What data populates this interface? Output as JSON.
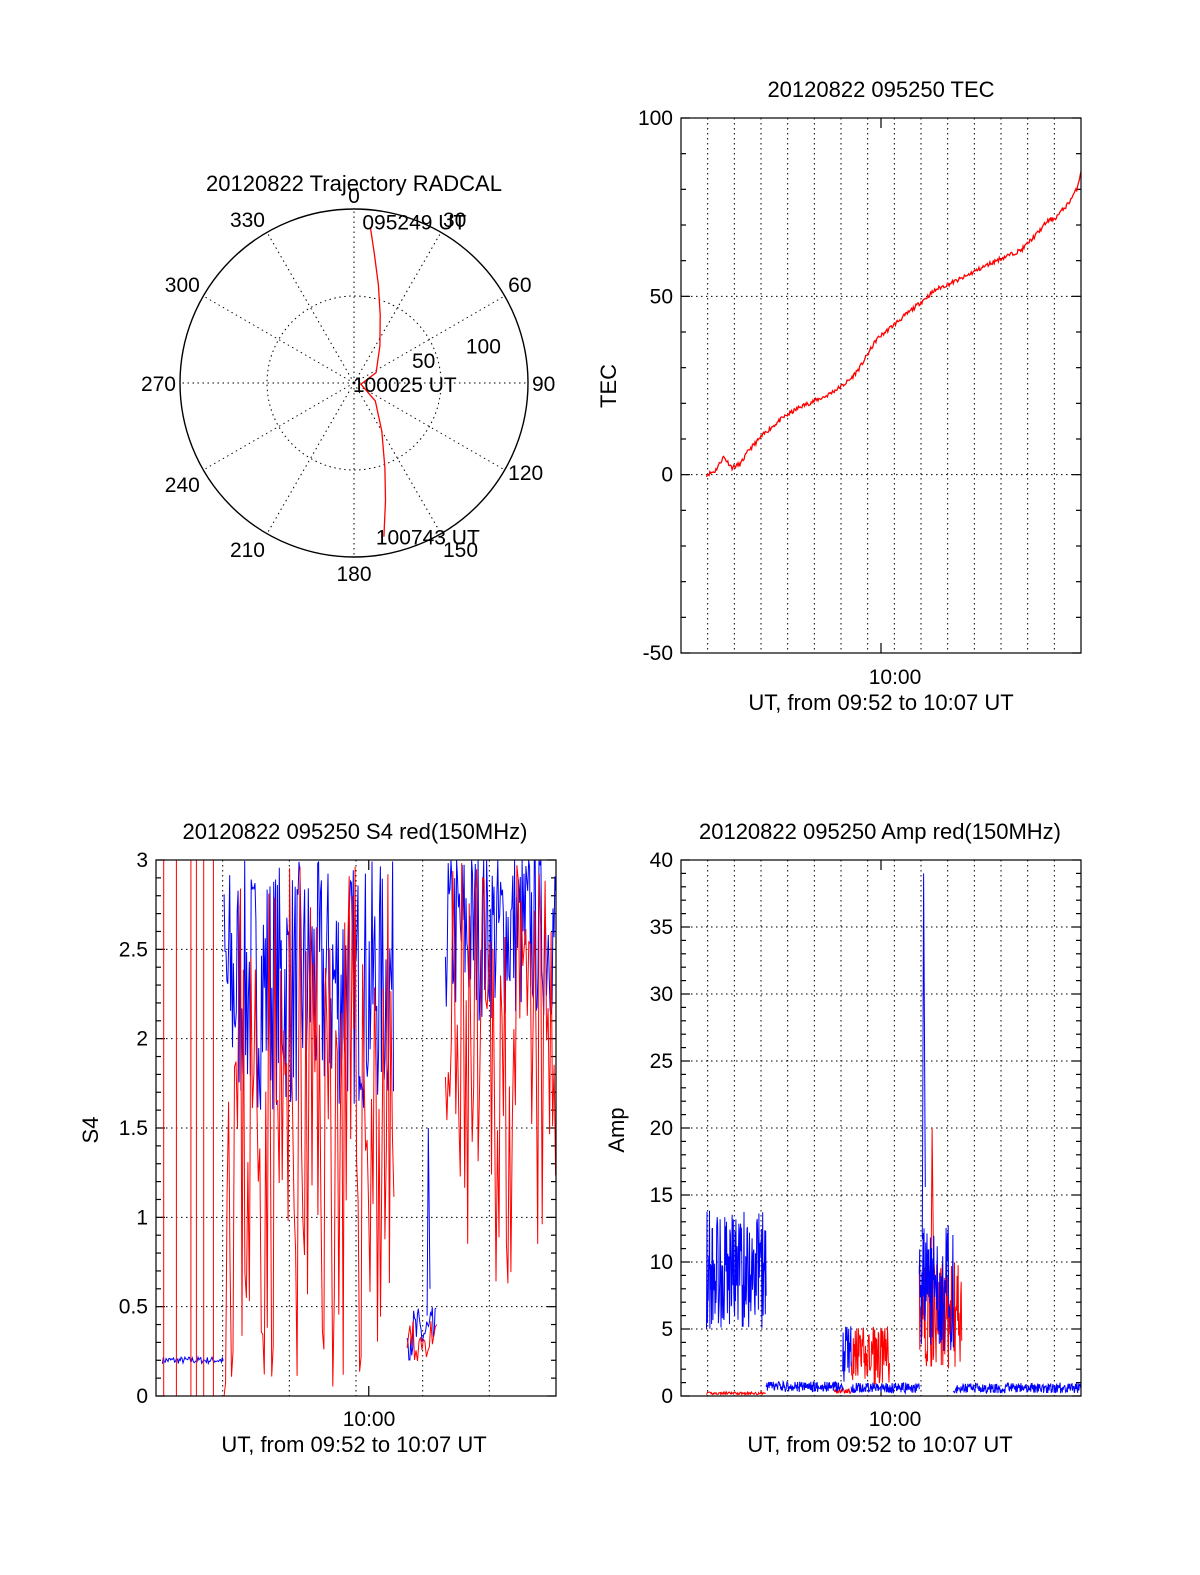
{
  "chart_data": [
    {
      "type": "polar",
      "title": "20120822 Trajectory RADCAL",
      "angle_labels": [
        "0",
        "30",
        "60",
        "90",
        "120",
        "150",
        "180",
        "210",
        "240",
        "270",
        "300",
        "330"
      ],
      "radial_labels": [
        "50",
        "100"
      ],
      "series": [
        {
          "color": "#ff0000",
          "points": [
            [
              6,
              90
            ],
            [
              9,
              75
            ],
            [
              14,
              58
            ],
            [
              21,
              42
            ],
            [
              35,
              26
            ],
            [
              65,
              14
            ],
            [
              100,
              4
            ],
            [
              130,
              16
            ],
            [
              150,
              32
            ],
            [
              160,
              52
            ],
            [
              165,
              70
            ],
            [
              169,
              90
            ]
          ]
        }
      ],
      "annotations": [
        {
          "text": "095249 UT",
          "angle": 6,
          "r": 90
        },
        {
          "text": "100025 UT",
          "angle": 100,
          "r": 4
        },
        {
          "text": "100743 UT",
          "angle": 169,
          "r": 90
        }
      ]
    },
    {
      "type": "line",
      "title": "20120822 095250 TEC",
      "xlabel": "UT, from 09:52 to 10:07 UT",
      "ylabel": "TEC",
      "xlim": [
        0,
        940
      ],
      "ylim": [
        -50,
        100
      ],
      "yticks": [
        -50,
        0,
        50,
        100
      ],
      "xticks": [
        {
          "value": 470,
          "label": "10:00"
        }
      ],
      "series": [
        {
          "color": "#ff0000",
          "x": [
            60,
            80,
            100,
            120,
            140,
            160,
            200,
            240,
            280,
            340,
            380,
            400,
            420,
            430,
            440,
            460,
            500,
            540,
            600,
            640,
            660,
            690,
            740,
            760,
            800,
            840,
            860,
            880,
            910,
            930,
            940
          ],
          "y": [
            0,
            1,
            5,
            2,
            3,
            7,
            12,
            16,
            19,
            22,
            25,
            27,
            30,
            32,
            34,
            38,
            42,
            46,
            52,
            54,
            55,
            57,
            60,
            61,
            63,
            68,
            71,
            72,
            76,
            80,
            85
          ]
        }
      ]
    },
    {
      "type": "line",
      "title": "20120822 095250 S4 red(150MHz)",
      "xlabel": "UT, from 09:52 to 10:07 UT",
      "ylabel": "S4",
      "xlim": [
        0,
        940
      ],
      "ylim": [
        0,
        3
      ],
      "yticks": [
        0,
        0.5,
        1,
        1.5,
        2,
        2.5,
        3
      ],
      "xticks": [
        {
          "value": 500,
          "label": "10:00"
        }
      ],
      "series": [
        {
          "name": "",
          "color": "#0000ff",
          "segments": [
            {
              "x_start": 15,
              "x_end": 160,
              "level": 0.2,
              "noise": 0.02
            },
            {
              "x_start": 160,
              "x_end": 560,
              "level": 2.3,
              "noise": 0.7
            },
            {
              "x_start": 590,
              "x_end": 660,
              "level": 0.35,
              "noise": 0.15
            },
            {
              "x_start": 680,
              "x_end": 940,
              "level": 2.6,
              "noise": 0.5
            }
          ],
          "peaks": [
            {
              "x": 640,
              "y": 1.5
            }
          ]
        },
        {
          "name": "",
          "color": "#ff0000",
          "segments": [
            {
              "x_start": 160,
              "x_end": 560,
              "level": 1.5,
              "noise": 1.5
            },
            {
              "x_start": 590,
              "x_end": 660,
              "level": 0.3,
              "noise": 0.12
            },
            {
              "x_start": 680,
              "x_end": 940,
              "level": 1.8,
              "noise": 1.2
            }
          ],
          "spikes_x": [
            18,
            48,
            82,
            95,
            112,
            135
          ]
        }
      ]
    },
    {
      "type": "line",
      "title": "20120822 095250 Amp red(150MHz)",
      "xlabel": "UT, from 09:52 to 10:07 UT",
      "ylabel": "Amp",
      "xlim": [
        0,
        940
      ],
      "ylim": [
        0,
        40
      ],
      "yticks": [
        0,
        5,
        10,
        15,
        20,
        25,
        30,
        35,
        40
      ],
      "xticks": [
        {
          "value": 470,
          "label": "10:00"
        }
      ],
      "series": [
        {
          "name": "",
          "color": "#0000ff",
          "segments": [
            {
              "x_start": 60,
              "x_end": 200,
              "level": 9.5,
              "noise": 4.5
            },
            {
              "x_start": 200,
              "x_end": 380,
              "level": 0.7,
              "noise": 0.4
            },
            {
              "x_start": 380,
              "x_end": 400,
              "level": 3.5,
              "noise": 2.5
            },
            {
              "x_start": 400,
              "x_end": 560,
              "level": 0.6,
              "noise": 0.4
            },
            {
              "x_start": 560,
              "x_end": 640,
              "level": 8,
              "noise": 5
            },
            {
              "x_start": 640,
              "x_end": 940,
              "level": 0.6,
              "noise": 0.4
            }
          ],
          "peaks": [
            {
              "x": 570,
              "y": 39
            }
          ]
        },
        {
          "name": "",
          "color": "#ff0000",
          "segments": [
            {
              "x_start": 60,
              "x_end": 200,
              "level": 0.2,
              "noise": 0.1
            },
            {
              "x_start": 360,
              "x_end": 400,
              "level": 0.4,
              "noise": 0.2
            },
            {
              "x_start": 400,
              "x_end": 490,
              "level": 3,
              "noise": 2.2
            },
            {
              "x_start": 560,
              "x_end": 660,
              "level": 6,
              "noise": 4
            }
          ],
          "peaks": [
            {
              "x": 590,
              "y": 20
            }
          ]
        }
      ]
    }
  ]
}
